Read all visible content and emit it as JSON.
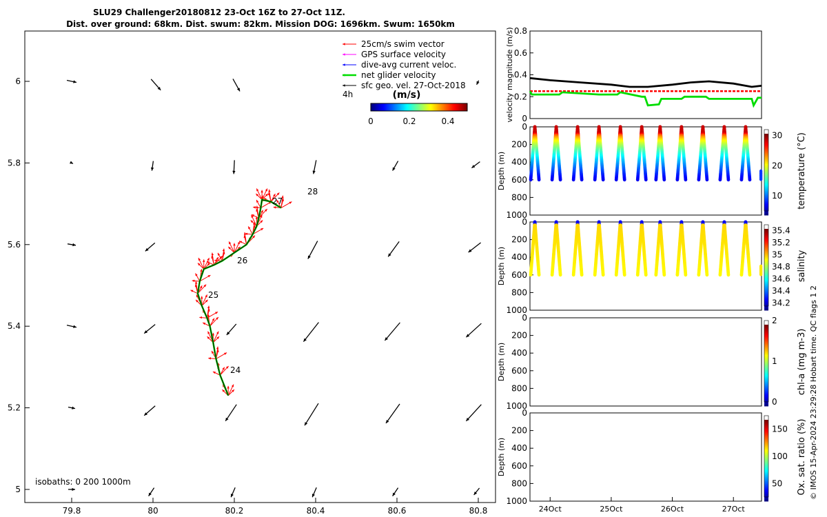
{
  "header": {
    "title_line1": "SLU29 Challenger20180812 23-Oct 16Z to 27-Oct 11Z.",
    "title_line2": "Dist. over ground: 68km. Dist. swum: 82km. Mission DOG: 1696km. Swum: 1650km"
  },
  "side_note": "© IMOS 15-Apr-2024 23:29:28 Hobart time. QC flags 1  2",
  "map": {
    "legend": [
      {
        "label": "25cm/s swim vector",
        "color": "#ff0000"
      },
      {
        "label": "GPS surface velocity",
        "color": "#ff00ff"
      },
      {
        "label": "dive-avg current veloc.",
        "color": "#0000ff"
      },
      {
        "label": "net glider velocity",
        "color": "#00dd00"
      },
      {
        "label": "sfc geo. vel. 27-Oct-2018",
        "color": "#000000"
      }
    ],
    "legend_4h": "4h",
    "colorbar": {
      "label": "(m/s)",
      "ticks": [
        "0",
        "0.2",
        "0.4"
      ],
      "range": [
        0,
        0.5
      ]
    },
    "isobaths_text": "isobaths: 0   200  1000m",
    "x_ticks": [
      "79.8",
      "80",
      "80.2",
      "80.4",
      "80.6",
      "80.8"
    ],
    "y_ticks": [
      "6",
      "5.8",
      "5.6",
      "5.4",
      "5.2",
      "5"
    ],
    "day_labels": [
      "28",
      "27",
      "26",
      "25",
      "24"
    ],
    "track_lonlat": [
      [
        80.185,
        5.23
      ],
      [
        80.165,
        5.28
      ],
      [
        80.155,
        5.32
      ],
      [
        80.148,
        5.36
      ],
      [
        80.14,
        5.4
      ],
      [
        80.133,
        5.42
      ],
      [
        80.12,
        5.45
      ],
      [
        80.11,
        5.48
      ],
      [
        80.115,
        5.51
      ],
      [
        80.125,
        5.54
      ],
      [
        80.15,
        5.55
      ],
      [
        80.17,
        5.56
      ],
      [
        80.2,
        5.58
      ],
      [
        80.23,
        5.6
      ],
      [
        80.245,
        5.625
      ],
      [
        80.255,
        5.645
      ],
      [
        80.26,
        5.665
      ],
      [
        80.265,
        5.69
      ],
      [
        80.268,
        5.71
      ],
      [
        80.29,
        5.705
      ],
      [
        80.315,
        5.69
      ]
    ]
  },
  "chart_data": [
    {
      "type": "line",
      "title": "",
      "xlabel": "",
      "ylabel": "velocity magnitude (m/s)",
      "ylim": [
        0,
        0.8
      ],
      "y_ticks": [
        "0",
        "0.2",
        "0.4",
        "0.6",
        "0.8"
      ],
      "x_days": [
        "24Oct",
        "25Oct",
        "26Oct",
        "27Oct"
      ],
      "series": [
        {
          "name": "sfc geo. velocity magnitude",
          "color": "#000000",
          "x": [
            23.67,
            24.0,
            24.5,
            25.0,
            25.3,
            25.6,
            26.0,
            26.3,
            26.6,
            27.0,
            27.3,
            27.46
          ],
          "values": [
            0.37,
            0.35,
            0.33,
            0.31,
            0.29,
            0.29,
            0.31,
            0.33,
            0.34,
            0.32,
            0.29,
            0.3
          ]
        },
        {
          "name": "swim speed",
          "color": "#ff0000",
          "x": [
            23.67,
            25.6,
            25.7,
            27.46
          ],
          "values": [
            0.25,
            0.25,
            0.25,
            0.25
          ]
        },
        {
          "name": "net glider velocity",
          "color": "#00dd00",
          "x": [
            23.67,
            23.7,
            23.75,
            24.15,
            24.2,
            24.8,
            25.1,
            25.15,
            25.5,
            25.55,
            25.6,
            25.78,
            25.82,
            26.15,
            26.2,
            26.55,
            26.6,
            27.3,
            27.33,
            27.4,
            27.46
          ],
          "values": [
            0.25,
            0.22,
            0.22,
            0.22,
            0.24,
            0.22,
            0.22,
            0.24,
            0.2,
            0.2,
            0.12,
            0.13,
            0.18,
            0.18,
            0.2,
            0.2,
            0.18,
            0.18,
            0.12,
            0.19,
            0.19
          ]
        }
      ]
    },
    {
      "type": "heatmap",
      "ylabel": "Depth (m)",
      "colorbar_label": "temperature (°C)",
      "colorbar_ticks": [
        "10",
        "20",
        "30"
      ],
      "colorbar_range": [
        5,
        32
      ],
      "ylim": [
        1000,
        0
      ],
      "y_ticks": [
        "0",
        "200",
        "400",
        "600",
        "800",
        "1000"
      ],
      "profile_day_positions": [
        23.75,
        24.1,
        24.45,
        24.8,
        25.15,
        25.5,
        25.8,
        26.15,
        26.5,
        26.85,
        27.2
      ],
      "max_depth": 600,
      "surface_value": 30,
      "deep_value": 8
    },
    {
      "type": "heatmap",
      "ylabel": "Depth (m)",
      "colorbar_label": "salinity",
      "colorbar_ticks": [
        "34.2",
        "34.4",
        "34.6",
        "34.8",
        "35",
        "35.2",
        "35.4"
      ],
      "colorbar_range": [
        34.15,
        35.5
      ],
      "ylim": [
        1000,
        0
      ],
      "y_ticks": [
        "0",
        "200",
        "400",
        "600",
        "800",
        "1000"
      ],
      "profile_day_positions": [
        23.75,
        24.1,
        24.45,
        24.8,
        25.15,
        25.5,
        25.8,
        26.15,
        26.5,
        26.85,
        27.2
      ],
      "max_depth": 600,
      "surface_value": 34.3,
      "deep_value": 35.0
    },
    {
      "type": "heatmap",
      "ylabel": "Depth (m)",
      "colorbar_label": "chl-a (mg m-3)",
      "colorbar_ticks": [
        "0",
        "1",
        "2"
      ],
      "colorbar_range": [
        0,
        2
      ],
      "ylim": [
        1000,
        0
      ],
      "y_ticks": [
        "0",
        "200",
        "400",
        "600",
        "800",
        "1000"
      ]
    },
    {
      "type": "heatmap",
      "ylabel": "Depth (m)",
      "colorbar_label": "Ox. sat. ratio (%)",
      "colorbar_ticks": [
        "50",
        "100",
        "150"
      ],
      "colorbar_range": [
        25,
        175
      ],
      "ylim": [
        1000,
        0
      ],
      "y_ticks": [
        "0",
        "200",
        "400",
        "600",
        "800",
        "1000"
      ]
    }
  ]
}
